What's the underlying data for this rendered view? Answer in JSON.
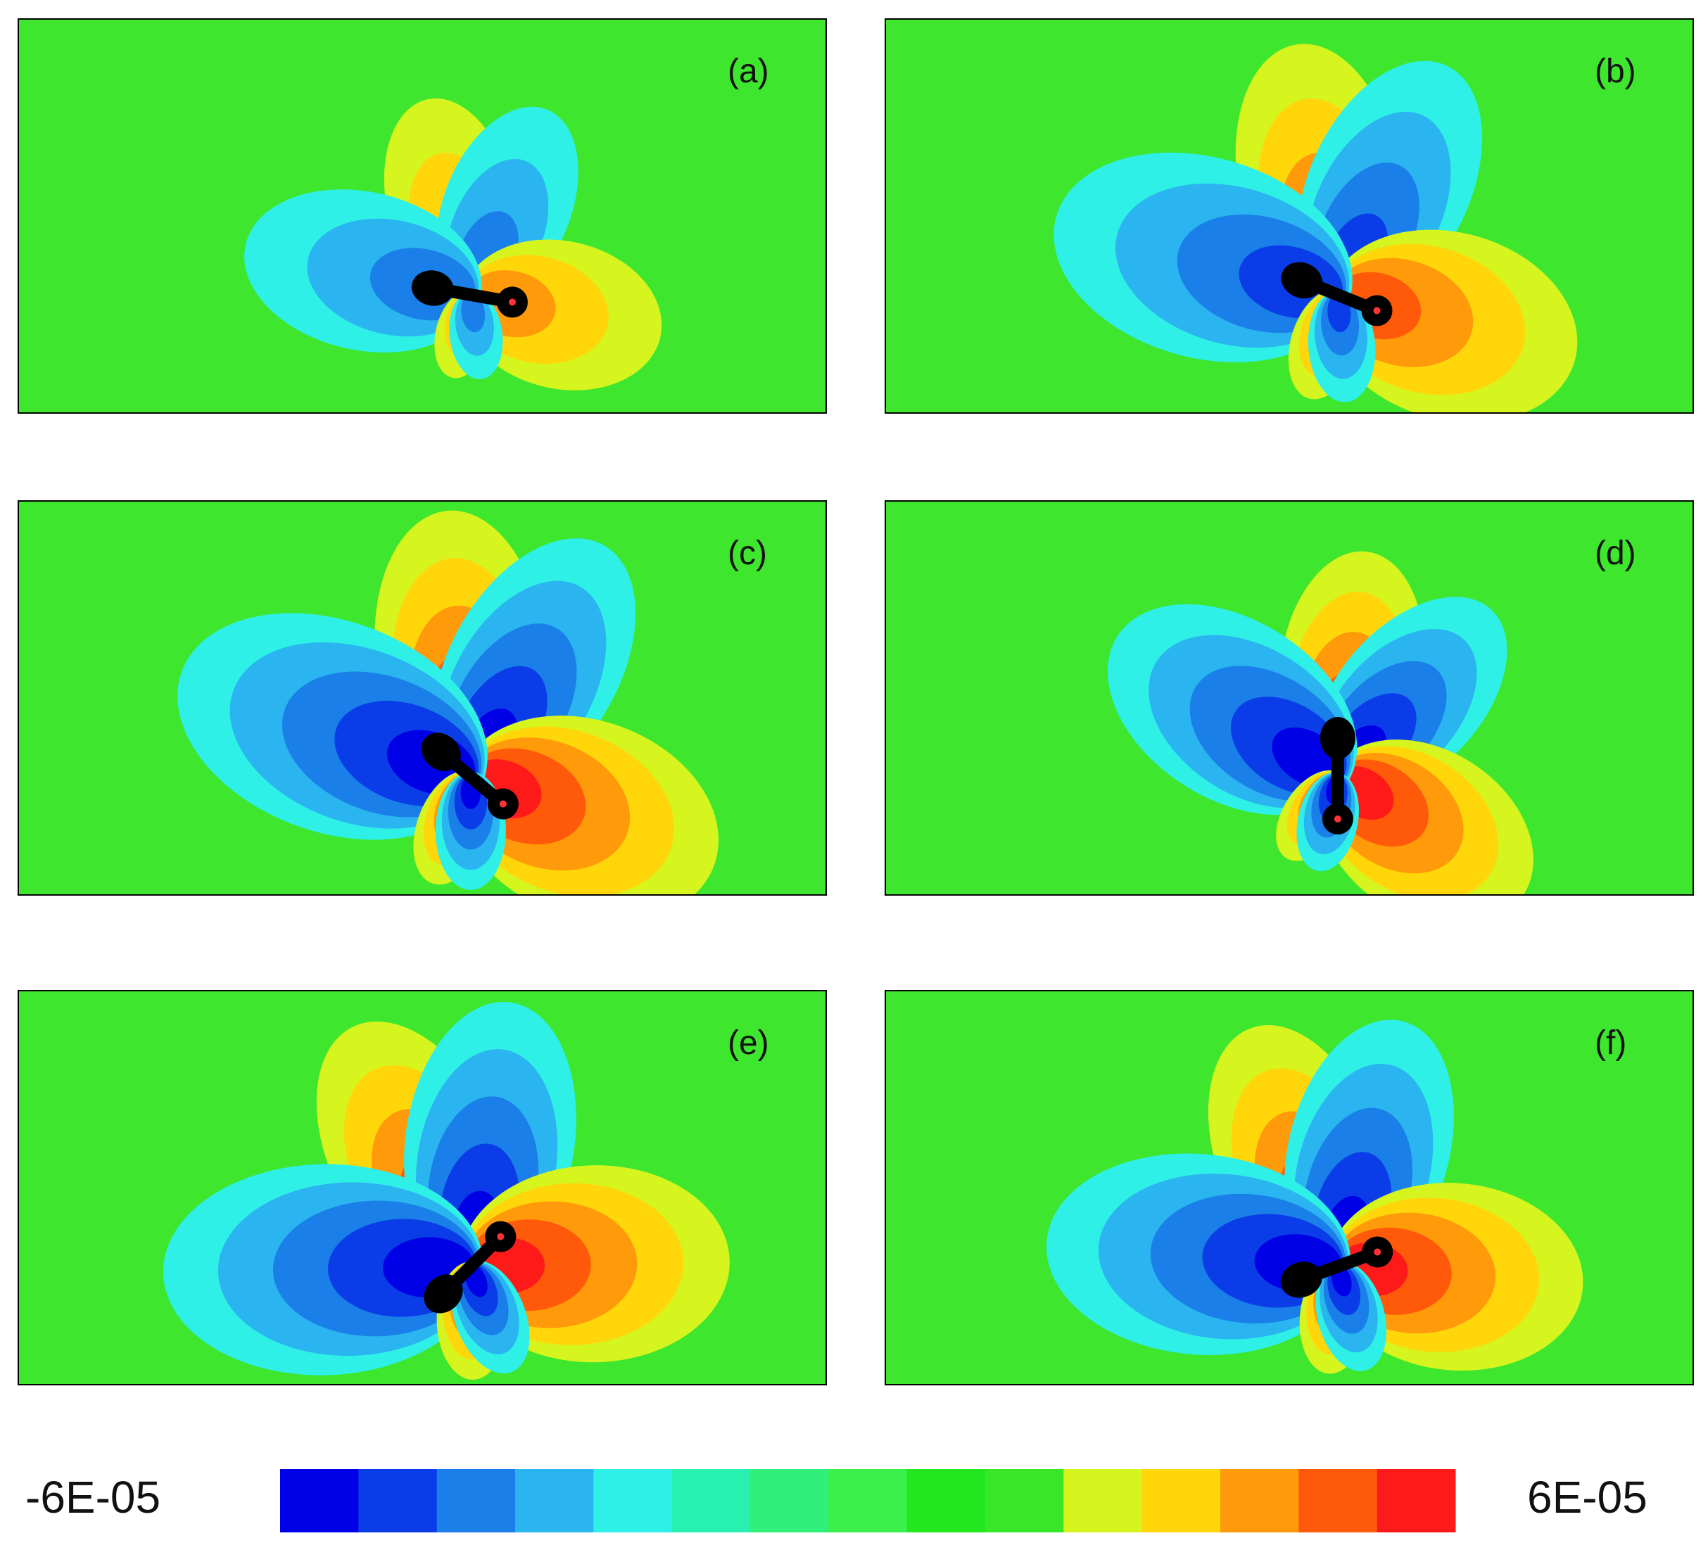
{
  "panels": [
    {
      "label": "(a)",
      "angle_deg": 10,
      "strength": 0.6,
      "scale": 0.75
    },
    {
      "label": "(b)",
      "angle_deg": 22,
      "strength": 0.85,
      "scale": 0.95
    },
    {
      "label": "(c)",
      "angle_deg": 40,
      "strength": 1.0,
      "scale": 1.0
    },
    {
      "label": "(d)",
      "angle_deg": 90,
      "strength": 0.9,
      "scale": 0.85
    },
    {
      "label": "(e)",
      "angle_deg": -45,
      "strength": 1.0,
      "scale": 1.0
    },
    {
      "label": "(f)",
      "angle_deg": -20,
      "strength": 0.9,
      "scale": 0.95
    }
  ],
  "colorbar": {
    "min_label": "-6E-05",
    "max_label": "6E-05",
    "levels": [
      "#0000e6",
      "#0a3de8",
      "#1a7fe8",
      "#2ab4f0",
      "#2ef0e6",
      "#28f0b0",
      "#2ef07a",
      "#3cf04c",
      "#22e61e",
      "#3ae62a",
      "#d6f51e",
      "#ffd60a",
      "#ff9a0a",
      "#ff5a0a",
      "#ff1a1a"
    ]
  }
}
